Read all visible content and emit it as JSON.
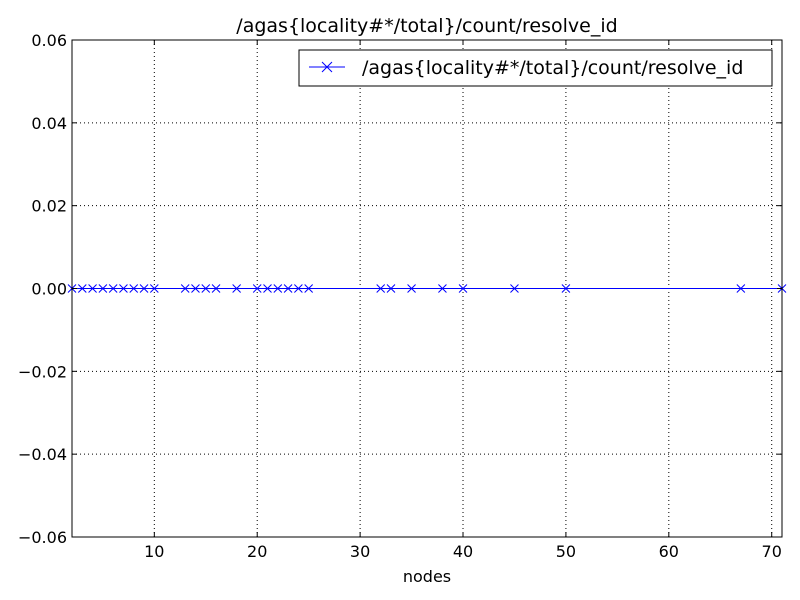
{
  "chart_data": {
    "type": "line",
    "title": "/agas{locality#*/total}/count/resolve_id",
    "xlabel": "nodes",
    "ylabel": "",
    "xlim": [
      2,
      71
    ],
    "ylim": [
      -0.06,
      0.06
    ],
    "x_ticks": [
      10,
      20,
      30,
      40,
      50,
      60,
      70
    ],
    "y_ticks": [
      -0.06,
      -0.04,
      -0.02,
      0.0,
      0.02,
      0.04,
      0.06
    ],
    "x_tick_labels": [
      "10",
      "20",
      "30",
      "40",
      "50",
      "60",
      "70"
    ],
    "y_tick_labels": [
      "−0.06",
      "−0.04",
      "−0.02",
      "0.00",
      "0.02",
      "0.04",
      "0.06"
    ],
    "grid": true,
    "legend_position": "upper right",
    "series": [
      {
        "name": "/agas{locality#*/total}/count/resolve_id",
        "color": "#0000ff",
        "marker": "x",
        "x": [
          2,
          3,
          4,
          5,
          6,
          7,
          8,
          9,
          10,
          13,
          14,
          15,
          16,
          18,
          20,
          21,
          22,
          23,
          24,
          25,
          32,
          33,
          35,
          38,
          40,
          45,
          50,
          67,
          71
        ],
        "y": [
          0,
          0,
          0,
          0,
          0,
          0,
          0,
          0,
          0,
          0,
          0,
          0,
          0,
          0,
          0,
          0,
          0,
          0,
          0,
          0,
          0,
          0,
          0,
          0,
          0,
          0,
          0,
          0,
          0
        ]
      }
    ]
  }
}
